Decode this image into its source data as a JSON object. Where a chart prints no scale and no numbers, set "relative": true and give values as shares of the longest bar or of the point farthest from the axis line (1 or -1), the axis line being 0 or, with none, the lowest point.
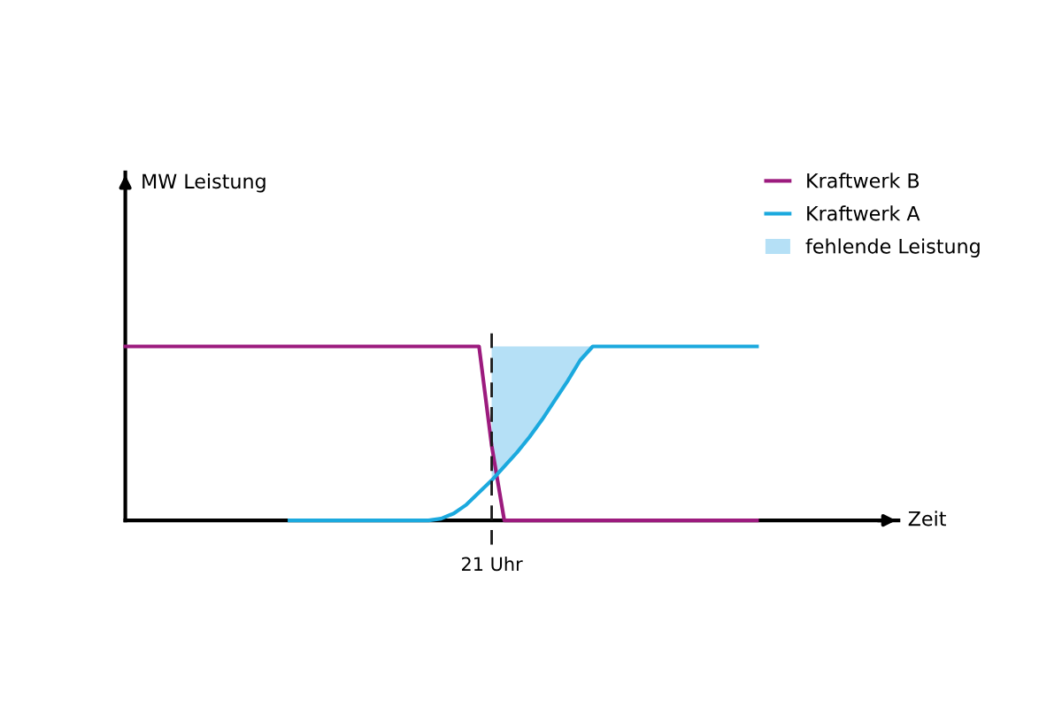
{
  "chart_data": {
    "type": "line",
    "relative": true,
    "annotations": [
      "MW Leistung",
      "Zeit",
      "21 Uhr"
    ],
    "categories": [
      null,
      null,
      null,
      null,
      null,
      null,
      null,
      null,
      null,
      null,
      null,
      null,
      null,
      null,
      null,
      null,
      null,
      null,
      null,
      null,
      null,
      null,
      null,
      null,
      null,
      null,
      null,
      null,
      null,
      null,
      null,
      null,
      null,
      null,
      null,
      null,
      null,
      null,
      null,
      null,
      null,
      null,
      null,
      null,
      null,
      null,
      null,
      null,
      null,
      null,
      null
    ],
    "series": [
      {
        "name": "Kraftwerk B",
        "color": "#9c1b7e",
        "values": [
          1,
          1,
          1,
          1,
          1,
          1,
          1,
          1,
          1,
          1,
          1,
          1,
          1,
          1,
          1,
          1,
          1,
          1,
          1,
          1,
          1,
          1,
          1,
          1,
          1,
          1,
          1,
          1,
          1,
          0.43,
          0,
          0,
          0,
          0,
          0,
          0,
          0,
          0,
          0,
          0,
          0,
          0,
          0,
          0,
          0,
          0,
          0,
          0,
          0,
          0,
          0
        ]
      },
      {
        "name": "Kraftwerk A",
        "color": "#1ba9de",
        "values": [
          null,
          null,
          null,
          null,
          null,
          null,
          null,
          null,
          null,
          null,
          null,
          null,
          null,
          0,
          0,
          0,
          0,
          0,
          0,
          0,
          0,
          0,
          0,
          0,
          0,
          0.01,
          0.04,
          0.09,
          0.16,
          0.23,
          0.31,
          0.39,
          0.48,
          0.58,
          0.69,
          0.8,
          0.92,
          1,
          1,
          1,
          1,
          1,
          1,
          1,
          1,
          1,
          1,
          1,
          1,
          1,
          1
        ]
      },
      {
        "name": "fehlende Leistung",
        "type": "area",
        "color": "#b5e0f6",
        "values": [
          null,
          null,
          null,
          null,
          null,
          null,
          null,
          null,
          null,
          null,
          null,
          null,
          null,
          null,
          null,
          null,
          null,
          null,
          null,
          null,
          null,
          null,
          null,
          null,
          null,
          null,
          null,
          null,
          null,
          1,
          1,
          1,
          1,
          1,
          1,
          1,
          1,
          1,
          null,
          null,
          null,
          null,
          null,
          null,
          null,
          null,
          null,
          null,
          null,
          null,
          null
        ]
      }
    ],
    "legend": "top right",
    "marker": "none",
    "line_style": "solid"
  }
}
